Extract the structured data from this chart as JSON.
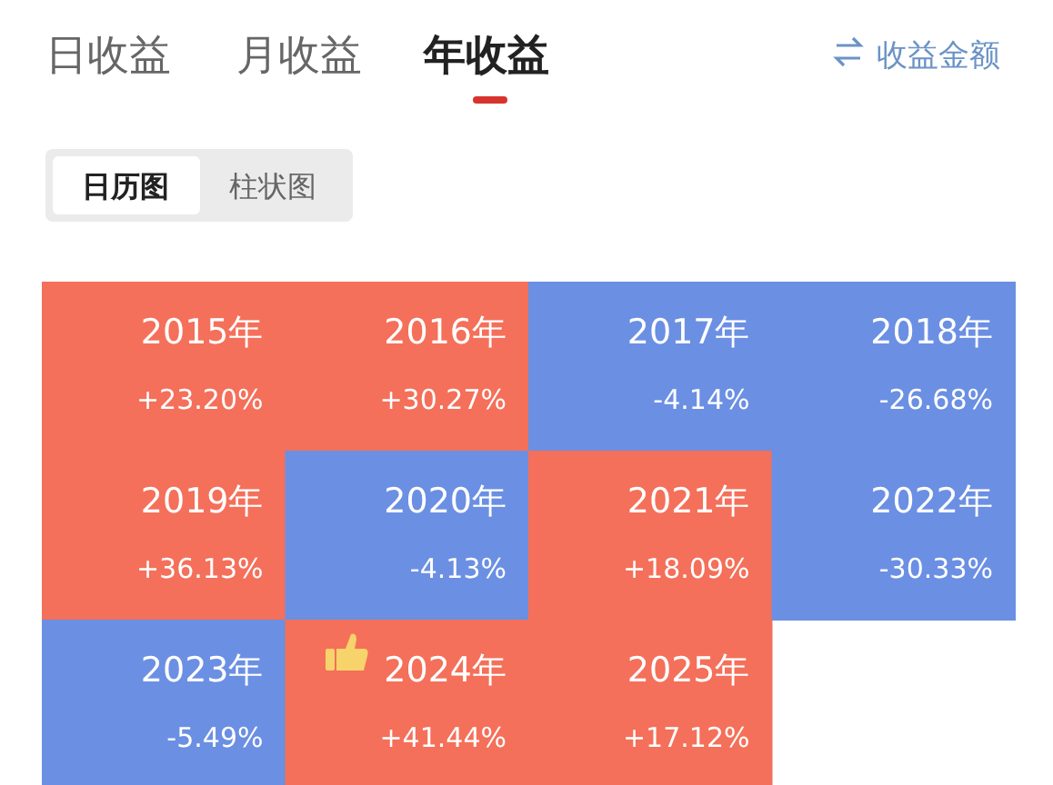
{
  "chart_data": {
    "type": "heatmap",
    "categories": [
      null,
      null,
      null,
      null
    ],
    "y_categories": [
      null,
      null,
      null
    ],
    "cells": [
      [
        23.2,
        30.27,
        -4.14,
        -26.68
      ],
      [
        36.13,
        -4.13,
        18.09,
        -30.33
      ],
      [
        -5.49,
        41.44,
        17.12,
        null
      ]
    ],
    "cell_labels": [
      [
        "+23.20%",
        "+30.27%",
        "-4.14%",
        "-26.68%"
      ],
      [
        "+36.13%",
        "-4.13%",
        "+18.09%",
        "-30.33%"
      ],
      [
        "-5.49%",
        "+41.44%",
        "+17.12%",
        null
      ]
    ],
    "colors": [
      "#f4705a",
      "#6b8fe3"
    ],
    "annotations": [
      "日收益",
      "月收益",
      "年收益",
      "收益金额",
      "日历图",
      "柱状图",
      "2015年",
      "2016年",
      "2017年",
      "2018年",
      "2019年",
      "2020年",
      "2021年",
      "2022年",
      "2023年",
      "2024年",
      "2025年"
    ]
  }
}
